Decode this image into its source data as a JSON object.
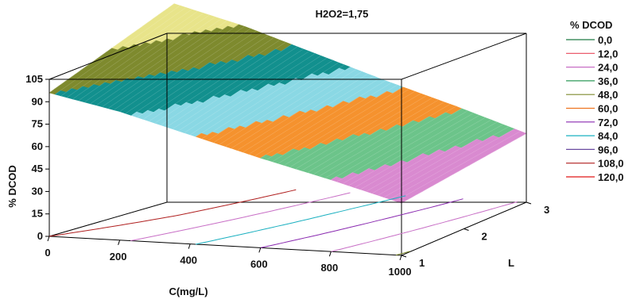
{
  "chart_data": {
    "type": "surface-3d",
    "title": "H2O2=1,75",
    "xlabel": "C(mg/L)",
    "ylabel": "L",
    "zlabel": "% DCOD",
    "x_ticks": [
      "0",
      "200",
      "400",
      "600",
      "800",
      "1000"
    ],
    "y_ticks": [
      "1",
      "2",
      "3"
    ],
    "z_ticks": [
      "0",
      "15",
      "30",
      "45",
      "60",
      "75",
      "90",
      "105"
    ],
    "xlim": [
      0,
      1000
    ],
    "ylim": [
      1,
      3
    ],
    "zlim": [
      0,
      105
    ],
    "legend": {
      "title": "% DCOD",
      "placement": "right",
      "entries": [
        {
          "label": "0,0",
          "color": "#1f7a44"
        },
        {
          "label": "12,0",
          "color": "#e8485c"
        },
        {
          "label": "24,0",
          "color": "#c86fc6"
        },
        {
          "label": "36,0",
          "color": "#2e9a58"
        },
        {
          "label": "48,0",
          "color": "#7e8a2e"
        },
        {
          "label": "60,0",
          "color": "#ee7420"
        },
        {
          "label": "72,0",
          "color": "#8a2ab0"
        },
        {
          "label": "84,0",
          "color": "#1ab0c0"
        },
        {
          "label": "96,0",
          "color": "#6a4aa0"
        },
        {
          "label": "108,0",
          "color": "#b02020"
        },
        {
          "label": "120,0",
          "color": "#e01818"
        }
      ]
    },
    "surface_front_edge": {
      "x": [
        0,
        200,
        400,
        600,
        800,
        1000
      ],
      "z": [
        96,
        86,
        73,
        60,
        48,
        35
      ]
    },
    "surface_bands": [
      {
        "range": [
          108,
          120
        ],
        "color": "#e8e48a"
      },
      {
        "range": [
          96,
          108
        ],
        "color": "#7e8a2e"
      },
      {
        "range": [
          84,
          96
        ],
        "color": "#12908e"
      },
      {
        "range": [
          72,
          84
        ],
        "color": "#8ad8e4"
      },
      {
        "range": [
          60,
          72
        ],
        "color": "#f5922e"
      },
      {
        "range": [
          48,
          60
        ],
        "color": "#6cc48a"
      },
      {
        "range": [
          36,
          48
        ],
        "color": "#d98ad0"
      }
    ]
  }
}
